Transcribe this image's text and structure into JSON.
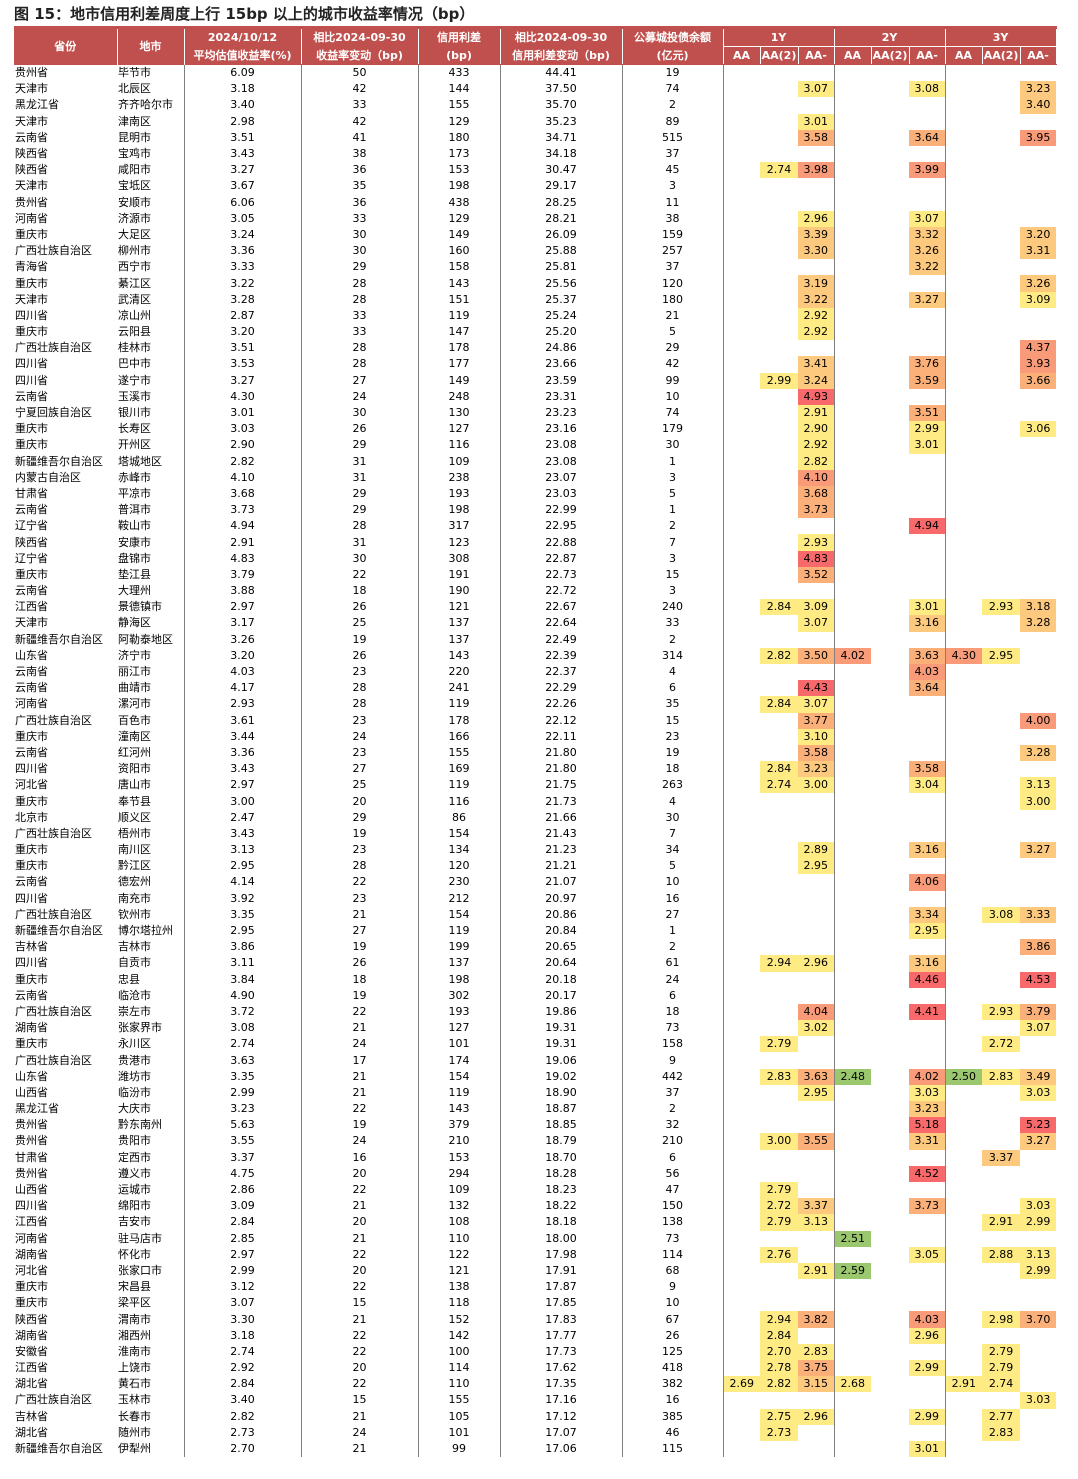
{
  "title": "图 15：地市信用利差周度上行 15bp 以上的城市收益率情况（bp）",
  "header": {
    "province": "省份",
    "city": "地市",
    "avg_yield_top": "2024/10/12",
    "avg_yield_bottom": "平均估值收益率(%)",
    "yield_change_top": "相比2024-09-30",
    "yield_change_bottom": "收益率变动（bp)",
    "spread_top": "信用利差",
    "spread_bottom": "(bp)",
    "spread_change_top": "相比2024-09-30",
    "spread_change_bottom": "信用利差变动（bp)",
    "balance_top": "公募城投债余额",
    "balance_bottom": "(亿元)",
    "tenors": [
      "1Y",
      "2Y",
      "3Y"
    ],
    "ratings": [
      "AA",
      "AA(2)",
      "AA-"
    ]
  },
  "heat_colors": {
    "yellow": "#ffeb84",
    "orange_light": "#fcc97e",
    "orange": "#fbb07a",
    "red_light": "#f99a78",
    "red": "#f8696b",
    "green": "#9bc86f"
  },
  "rows": [
    [
      "贵州省",
      "毕节市",
      "6.09",
      "50",
      "433",
      "44.41",
      "19",
      "",
      "",
      "",
      "",
      "",
      "",
      "",
      "",
      ""
    ],
    [
      "天津市",
      "北辰区",
      "3.18",
      "42",
      "144",
      "37.50",
      "74",
      "",
      "",
      "3.07",
      "",
      "",
      "3.08",
      "",
      "",
      "3.23"
    ],
    [
      "黑龙江省",
      "齐齐哈尔市",
      "3.40",
      "33",
      "155",
      "35.70",
      "2",
      "",
      "",
      "",
      "",
      "",
      "",
      "",
      "",
      "3.40"
    ],
    [
      "天津市",
      "津南区",
      "2.98",
      "42",
      "129",
      "35.23",
      "89",
      "",
      "",
      "3.01",
      "",
      "",
      "",
      "",
      "",
      ""
    ],
    [
      "云南省",
      "昆明市",
      "3.51",
      "41",
      "180",
      "34.71",
      "515",
      "",
      "",
      "3.58",
      "",
      "",
      "3.64",
      "",
      "",
      "3.95"
    ],
    [
      "陕西省",
      "宝鸡市",
      "3.43",
      "38",
      "173",
      "34.18",
      "37",
      "",
      "",
      "",
      "",
      "",
      "",
      "",
      "",
      ""
    ],
    [
      "陕西省",
      "咸阳市",
      "3.27",
      "36",
      "153",
      "30.47",
      "45",
      "",
      "2.74",
      "3.98",
      "",
      "",
      "3.99",
      "",
      "",
      ""
    ],
    [
      "天津市",
      "宝坻区",
      "3.67",
      "35",
      "198",
      "29.17",
      "3",
      "",
      "",
      "",
      "",
      "",
      "",
      "",
      "",
      ""
    ],
    [
      "贵州省",
      "安顺市",
      "6.06",
      "36",
      "438",
      "28.25",
      "11",
      "",
      "",
      "",
      "",
      "",
      "",
      "",
      "",
      ""
    ],
    [
      "河南省",
      "济源市",
      "3.05",
      "33",
      "129",
      "28.21",
      "38",
      "",
      "",
      "2.96",
      "",
      "",
      "3.07",
      "",
      "",
      ""
    ],
    [
      "重庆市",
      "大足区",
      "3.24",
      "30",
      "149",
      "26.09",
      "159",
      "",
      "",
      "3.39",
      "",
      "",
      "3.32",
      "",
      "",
      "3.20"
    ],
    [
      "广西壮族自治区",
      "柳州市",
      "3.36",
      "30",
      "160",
      "25.88",
      "257",
      "",
      "",
      "3.30",
      "",
      "",
      "3.26",
      "",
      "",
      "3.31"
    ],
    [
      "青海省",
      "西宁市",
      "3.33",
      "29",
      "158",
      "25.81",
      "37",
      "",
      "",
      "",
      "",
      "",
      "3.22",
      "",
      "",
      ""
    ],
    [
      "重庆市",
      "綦江区",
      "3.22",
      "28",
      "143",
      "25.56",
      "120",
      "",
      "",
      "3.19",
      "",
      "",
      "",
      "",
      "",
      "3.26"
    ],
    [
      "天津市",
      "武清区",
      "3.28",
      "28",
      "151",
      "25.37",
      "180",
      "",
      "",
      "3.22",
      "",
      "",
      "3.27",
      "",
      "",
      "3.09"
    ],
    [
      "四川省",
      "凉山州",
      "2.87",
      "33",
      "119",
      "25.24",
      "21",
      "",
      "",
      "2.92",
      "",
      "",
      "",
      "",
      "",
      ""
    ],
    [
      "重庆市",
      "云阳县",
      "3.20",
      "33",
      "147",
      "25.20",
      "5",
      "",
      "",
      "2.92",
      "",
      "",
      "",
      "",
      "",
      ""
    ],
    [
      "广西壮族自治区",
      "桂林市",
      "3.51",
      "28",
      "178",
      "24.86",
      "29",
      "",
      "",
      "",
      "",
      "",
      "",
      "",
      "",
      "4.37"
    ],
    [
      "四川省",
      "巴中市",
      "3.53",
      "28",
      "177",
      "23.66",
      "42",
      "",
      "",
      "3.41",
      "",
      "",
      "3.76",
      "",
      "",
      "3.93"
    ],
    [
      "四川省",
      "遂宁市",
      "3.27",
      "27",
      "149",
      "23.59",
      "99",
      "",
      "2.99",
      "3.24",
      "",
      "",
      "3.59",
      "",
      "",
      "3.66"
    ],
    [
      "云南省",
      "玉溪市",
      "4.30",
      "24",
      "248",
      "23.31",
      "10",
      "",
      "",
      "4.93",
      "",
      "",
      "",
      "",
      "",
      ""
    ],
    [
      "宁夏回族自治区",
      "银川市",
      "3.01",
      "30",
      "130",
      "23.23",
      "74",
      "",
      "",
      "2.91",
      "",
      "",
      "3.51",
      "",
      "",
      ""
    ],
    [
      "重庆市",
      "长寿区",
      "3.03",
      "26",
      "127",
      "23.16",
      "179",
      "",
      "",
      "2.90",
      "",
      "",
      "2.99",
      "",
      "",
      "3.06"
    ],
    [
      "重庆市",
      "开州区",
      "2.90",
      "29",
      "116",
      "23.08",
      "30",
      "",
      "",
      "2.92",
      "",
      "",
      "3.01",
      "",
      "",
      ""
    ],
    [
      "新疆维吾尔自治区",
      "塔城地区",
      "2.82",
      "31",
      "109",
      "23.08",
      "1",
      "",
      "",
      "2.82",
      "",
      "",
      "",
      "",
      "",
      ""
    ],
    [
      "内蒙古自治区",
      "赤峰市",
      "4.10",
      "31",
      "238",
      "23.07",
      "3",
      "",
      "",
      "4.10",
      "",
      "",
      "",
      "",
      "",
      ""
    ],
    [
      "甘肃省",
      "平凉市",
      "3.68",
      "29",
      "193",
      "23.03",
      "5",
      "",
      "",
      "3.68",
      "",
      "",
      "",
      "",
      "",
      ""
    ],
    [
      "云南省",
      "普洱市",
      "3.73",
      "29",
      "198",
      "22.99",
      "1",
      "",
      "",
      "3.73",
      "",
      "",
      "",
      "",
      "",
      ""
    ],
    [
      "辽宁省",
      "鞍山市",
      "4.94",
      "28",
      "317",
      "22.95",
      "2",
      "",
      "",
      "",
      "",
      "",
      "4.94",
      "",
      "",
      ""
    ],
    [
      "陕西省",
      "安康市",
      "2.91",
      "31",
      "123",
      "22.88",
      "7",
      "",
      "",
      "2.93",
      "",
      "",
      "",
      "",
      "",
      ""
    ],
    [
      "辽宁省",
      "盘锦市",
      "4.83",
      "30",
      "308",
      "22.87",
      "3",
      "",
      "",
      "4.83",
      "",
      "",
      "",
      "",
      "",
      ""
    ],
    [
      "重庆市",
      "垫江县",
      "3.79",
      "22",
      "191",
      "22.73",
      "15",
      "",
      "",
      "3.52",
      "",
      "",
      "",
      "",
      "",
      ""
    ],
    [
      "云南省",
      "大理州",
      "3.88",
      "18",
      "190",
      "22.72",
      "3",
      "",
      "",
      "",
      "",
      "",
      "",
      "",
      "",
      ""
    ],
    [
      "江西省",
      "景德镇市",
      "2.97",
      "26",
      "121",
      "22.67",
      "240",
      "",
      "2.84",
      "3.09",
      "",
      "",
      "3.01",
      "",
      "2.93",
      "3.18"
    ],
    [
      "天津市",
      "静海区",
      "3.17",
      "25",
      "137",
      "22.64",
      "33",
      "",
      "",
      "3.07",
      "",
      "",
      "3.16",
      "",
      "",
      "3.28"
    ],
    [
      "新疆维吾尔自治区",
      "阿勒泰地区",
      "3.26",
      "19",
      "137",
      "22.49",
      "2",
      "",
      "",
      "",
      "",
      "",
      "",
      "",
      "",
      ""
    ],
    [
      "山东省",
      "济宁市",
      "3.20",
      "26",
      "143",
      "22.39",
      "314",
      "",
      "2.82",
      "3.50",
      "4.02",
      "",
      "3.63",
      "4.30",
      "2.95",
      ""
    ],
    [
      "云南省",
      "丽江市",
      "4.03",
      "23",
      "220",
      "22.37",
      "4",
      "",
      "",
      "",
      "",
      "",
      "4.03",
      "",
      "",
      ""
    ],
    [
      "云南省",
      "曲靖市",
      "4.17",
      "28",
      "241",
      "22.29",
      "6",
      "",
      "",
      "4.43",
      "",
      "",
      "3.64",
      "",
      "",
      ""
    ],
    [
      "河南省",
      "漯河市",
      "2.93",
      "28",
      "119",
      "22.26",
      "35",
      "",
      "2.84",
      "3.07",
      "",
      "",
      "",
      "",
      "",
      ""
    ],
    [
      "广西壮族自治区",
      "百色市",
      "3.61",
      "23",
      "178",
      "22.12",
      "15",
      "",
      "",
      "3.77",
      "",
      "",
      "",
      "",
      "",
      "4.00"
    ],
    [
      "重庆市",
      "潼南区",
      "3.44",
      "24",
      "166",
      "22.11",
      "23",
      "",
      "",
      "3.10",
      "",
      "",
      "",
      "",
      "",
      ""
    ],
    [
      "云南省",
      "红河州",
      "3.36",
      "23",
      "155",
      "21.80",
      "19",
      "",
      "",
      "3.58",
      "",
      "",
      "",
      "",
      "",
      "3.28"
    ],
    [
      "四川省",
      "资阳市",
      "3.43",
      "27",
      "169",
      "21.80",
      "18",
      "",
      "2.84",
      "3.23",
      "",
      "",
      "3.58",
      "",
      "",
      ""
    ],
    [
      "河北省",
      "唐山市",
      "2.97",
      "25",
      "119",
      "21.75",
      "263",
      "",
      "2.74",
      "3.00",
      "",
      "",
      "3.04",
      "",
      "",
      "3.13"
    ],
    [
      "重庆市",
      "奉节县",
      "3.00",
      "20",
      "116",
      "21.73",
      "4",
      "",
      "",
      "",
      "",
      "",
      "",
      "",
      "",
      "3.00"
    ],
    [
      "北京市",
      "顺义区",
      "2.47",
      "29",
      "86",
      "21.66",
      "30",
      "",
      "",
      "",
      "",
      "",
      "",
      "",
      "",
      ""
    ],
    [
      "广西壮族自治区",
      "梧州市",
      "3.43",
      "19",
      "154",
      "21.43",
      "7",
      "",
      "",
      "",
      "",
      "",
      "",
      "",
      "",
      ""
    ],
    [
      "重庆市",
      "南川区",
      "3.13",
      "23",
      "134",
      "21.23",
      "34",
      "",
      "",
      "2.89",
      "",
      "",
      "3.16",
      "",
      "",
      "3.27"
    ],
    [
      "重庆市",
      "黔江区",
      "2.95",
      "28",
      "120",
      "21.21",
      "5",
      "",
      "",
      "2.95",
      "",
      "",
      "",
      "",
      "",
      ""
    ],
    [
      "云南省",
      "德宏州",
      "4.14",
      "22",
      "230",
      "21.07",
      "10",
      "",
      "",
      "",
      "",
      "",
      "4.06",
      "",
      "",
      ""
    ],
    [
      "四川省",
      "南充市",
      "3.92",
      "23",
      "212",
      "20.97",
      "16",
      "",
      "",
      "",
      "",
      "",
      "",
      "",
      "",
      ""
    ],
    [
      "广西壮族自治区",
      "钦州市",
      "3.35",
      "21",
      "154",
      "20.86",
      "27",
      "",
      "",
      "",
      "",
      "",
      "3.34",
      "",
      "3.08",
      "3.33"
    ],
    [
      "新疆维吾尔自治区",
      "博尔塔拉州",
      "2.95",
      "27",
      "119",
      "20.84",
      "1",
      "",
      "",
      "",
      "",
      "",
      "2.95",
      "",
      "",
      ""
    ],
    [
      "吉林省",
      "吉林市",
      "3.86",
      "19",
      "199",
      "20.65",
      "2",
      "",
      "",
      "",
      "",
      "",
      "",
      "",
      "",
      "3.86"
    ],
    [
      "四川省",
      "自贡市",
      "3.11",
      "26",
      "137",
      "20.64",
      "61",
      "",
      "2.94",
      "2.96",
      "",
      "",
      "3.16",
      "",
      "",
      ""
    ],
    [
      "重庆市",
      "忠县",
      "3.84",
      "18",
      "198",
      "20.18",
      "24",
      "",
      "",
      "",
      "",
      "",
      "4.46",
      "",
      "",
      "4.53"
    ],
    [
      "云南省",
      "临沧市",
      "4.90",
      "19",
      "302",
      "20.17",
      "6",
      "",
      "",
      "",
      "",
      "",
      "",
      "",
      "",
      ""
    ],
    [
      "广西壮族自治区",
      "崇左市",
      "3.72",
      "22",
      "193",
      "19.86",
      "18",
      "",
      "",
      "4.04",
      "",
      "",
      "4.41",
      "",
      "2.93",
      "3.79"
    ],
    [
      "湖南省",
      "张家界市",
      "3.08",
      "21",
      "127",
      "19.31",
      "73",
      "",
      "",
      "3.02",
      "",
      "",
      "",
      "",
      "",
      "3.07"
    ],
    [
      "重庆市",
      "永川区",
      "2.74",
      "24",
      "101",
      "19.31",
      "158",
      "",
      "2.79",
      "",
      "",
      "",
      "",
      "",
      "2.72",
      ""
    ],
    [
      "广西壮族自治区",
      "贵港市",
      "3.63",
      "17",
      "174",
      "19.06",
      "9",
      "",
      "",
      "",
      "",
      "",
      "",
      "",
      "",
      ""
    ],
    [
      "山东省",
      "潍坊市",
      "3.35",
      "21",
      "154",
      "19.02",
      "442",
      "",
      "2.83",
      "3.63",
      "2.48",
      "",
      "4.02",
      "2.50",
      "2.83",
      "3.49"
    ],
    [
      "山西省",
      "临汾市",
      "2.99",
      "21",
      "119",
      "18.90",
      "37",
      "",
      "",
      "2.95",
      "",
      "",
      "3.03",
      "",
      "",
      "3.03"
    ],
    [
      "黑龙江省",
      "大庆市",
      "3.23",
      "22",
      "143",
      "18.87",
      "2",
      "",
      "",
      "",
      "",
      "",
      "3.23",
      "",
      "",
      ""
    ],
    [
      "贵州省",
      "黔东南州",
      "5.63",
      "19",
      "379",
      "18.85",
      "32",
      "",
      "",
      "",
      "",
      "",
      "5.18",
      "",
      "",
      "5.23"
    ],
    [
      "贵州省",
      "贵阳市",
      "3.55",
      "24",
      "210",
      "18.79",
      "210",
      "",
      "3.00",
      "3.55",
      "",
      "",
      "3.31",
      "",
      "",
      "3.27"
    ],
    [
      "甘肃省",
      "定西市",
      "3.37",
      "16",
      "153",
      "18.70",
      "6",
      "",
      "",
      "",
      "",
      "",
      "",
      "",
      "3.37",
      ""
    ],
    [
      "贵州省",
      "遵义市",
      "4.75",
      "20",
      "294",
      "18.28",
      "56",
      "",
      "",
      "",
      "",
      "",
      "4.52",
      "",
      "",
      ""
    ],
    [
      "山西省",
      "运城市",
      "2.86",
      "22",
      "109",
      "18.23",
      "47",
      "",
      "2.79",
      "",
      "",
      "",
      "",
      "",
      "",
      ""
    ],
    [
      "四川省",
      "绵阳市",
      "3.09",
      "21",
      "132",
      "18.22",
      "150",
      "",
      "2.72",
      "3.37",
      "",
      "",
      "3.73",
      "",
      "",
      "3.03"
    ],
    [
      "江西省",
      "吉安市",
      "2.84",
      "20",
      "108",
      "18.18",
      "138",
      "",
      "2.79",
      "3.13",
      "",
      "",
      "",
      "",
      "2.91",
      "2.99"
    ],
    [
      "河南省",
      "驻马店市",
      "2.85",
      "21",
      "110",
      "18.00",
      "73",
      "",
      "",
      "",
      "2.51",
      "",
      "",
      "",
      "",
      ""
    ],
    [
      "湖南省",
      "怀化市",
      "2.97",
      "22",
      "122",
      "17.98",
      "114",
      "",
      "2.76",
      "",
      "",
      "",
      "3.05",
      "",
      "2.88",
      "3.13"
    ],
    [
      "河北省",
      "张家口市",
      "2.99",
      "20",
      "121",
      "17.91",
      "68",
      "",
      "",
      "2.91",
      "2.59",
      "",
      "",
      "",
      "",
      "2.99"
    ],
    [
      "重庆市",
      "宋昌县",
      "3.12",
      "22",
      "138",
      "17.87",
      "9",
      "",
      "",
      "",
      "",
      "",
      "",
      "",
      "",
      ""
    ],
    [
      "重庆市",
      "梁平区",
      "3.07",
      "15",
      "118",
      "17.85",
      "10",
      "",
      "",
      "",
      "",
      "",
      "",
      "",
      "",
      ""
    ],
    [
      "陕西省",
      "渭南市",
      "3.30",
      "21",
      "152",
      "17.83",
      "67",
      "",
      "2.94",
      "3.82",
      "",
      "",
      "4.03",
      "",
      "2.98",
      "3.70"
    ],
    [
      "湖南省",
      "湘西州",
      "3.18",
      "22",
      "142",
      "17.77",
      "26",
      "",
      "2.84",
      "",
      "",
      "",
      "2.96",
      "",
      "",
      ""
    ],
    [
      "安徽省",
      "淮南市",
      "2.74",
      "22",
      "100",
      "17.73",
      "125",
      "",
      "2.70",
      "2.83",
      "",
      "",
      "",
      "",
      "2.79",
      ""
    ],
    [
      "江西省",
      "上饶市",
      "2.92",
      "20",
      "114",
      "17.62",
      "418",
      "",
      "2.78",
      "3.75",
      "",
      "",
      "2.99",
      "",
      "2.79",
      ""
    ],
    [
      "湖北省",
      "黄石市",
      "2.84",
      "22",
      "110",
      "17.35",
      "382",
      "2.69",
      "2.82",
      "3.15",
      "2.68",
      "",
      "",
      "2.91",
      "2.74",
      ""
    ],
    [
      "广西壮族自治区",
      "玉林市",
      "3.40",
      "15",
      "155",
      "17.16",
      "16",
      "",
      "",
      "",
      "",
      "",
      "",
      "",
      "",
      "3.03"
    ],
    [
      "吉林省",
      "长春市",
      "2.82",
      "21",
      "105",
      "17.12",
      "385",
      "",
      "2.75",
      "2.96",
      "",
      "",
      "2.99",
      "",
      "2.77",
      ""
    ],
    [
      "湖北省",
      "随州市",
      "2.73",
      "24",
      "101",
      "17.07",
      "46",
      "",
      "2.73",
      "",
      "",
      "",
      "",
      "",
      "2.83",
      ""
    ],
    [
      "新疆维吾尔自治区",
      "伊犁州",
      "2.70",
      "21",
      "99",
      "17.06",
      "115",
      "",
      "",
      "",
      "",
      "",
      "3.01",
      "",
      "",
      ""
    ]
  ]
}
